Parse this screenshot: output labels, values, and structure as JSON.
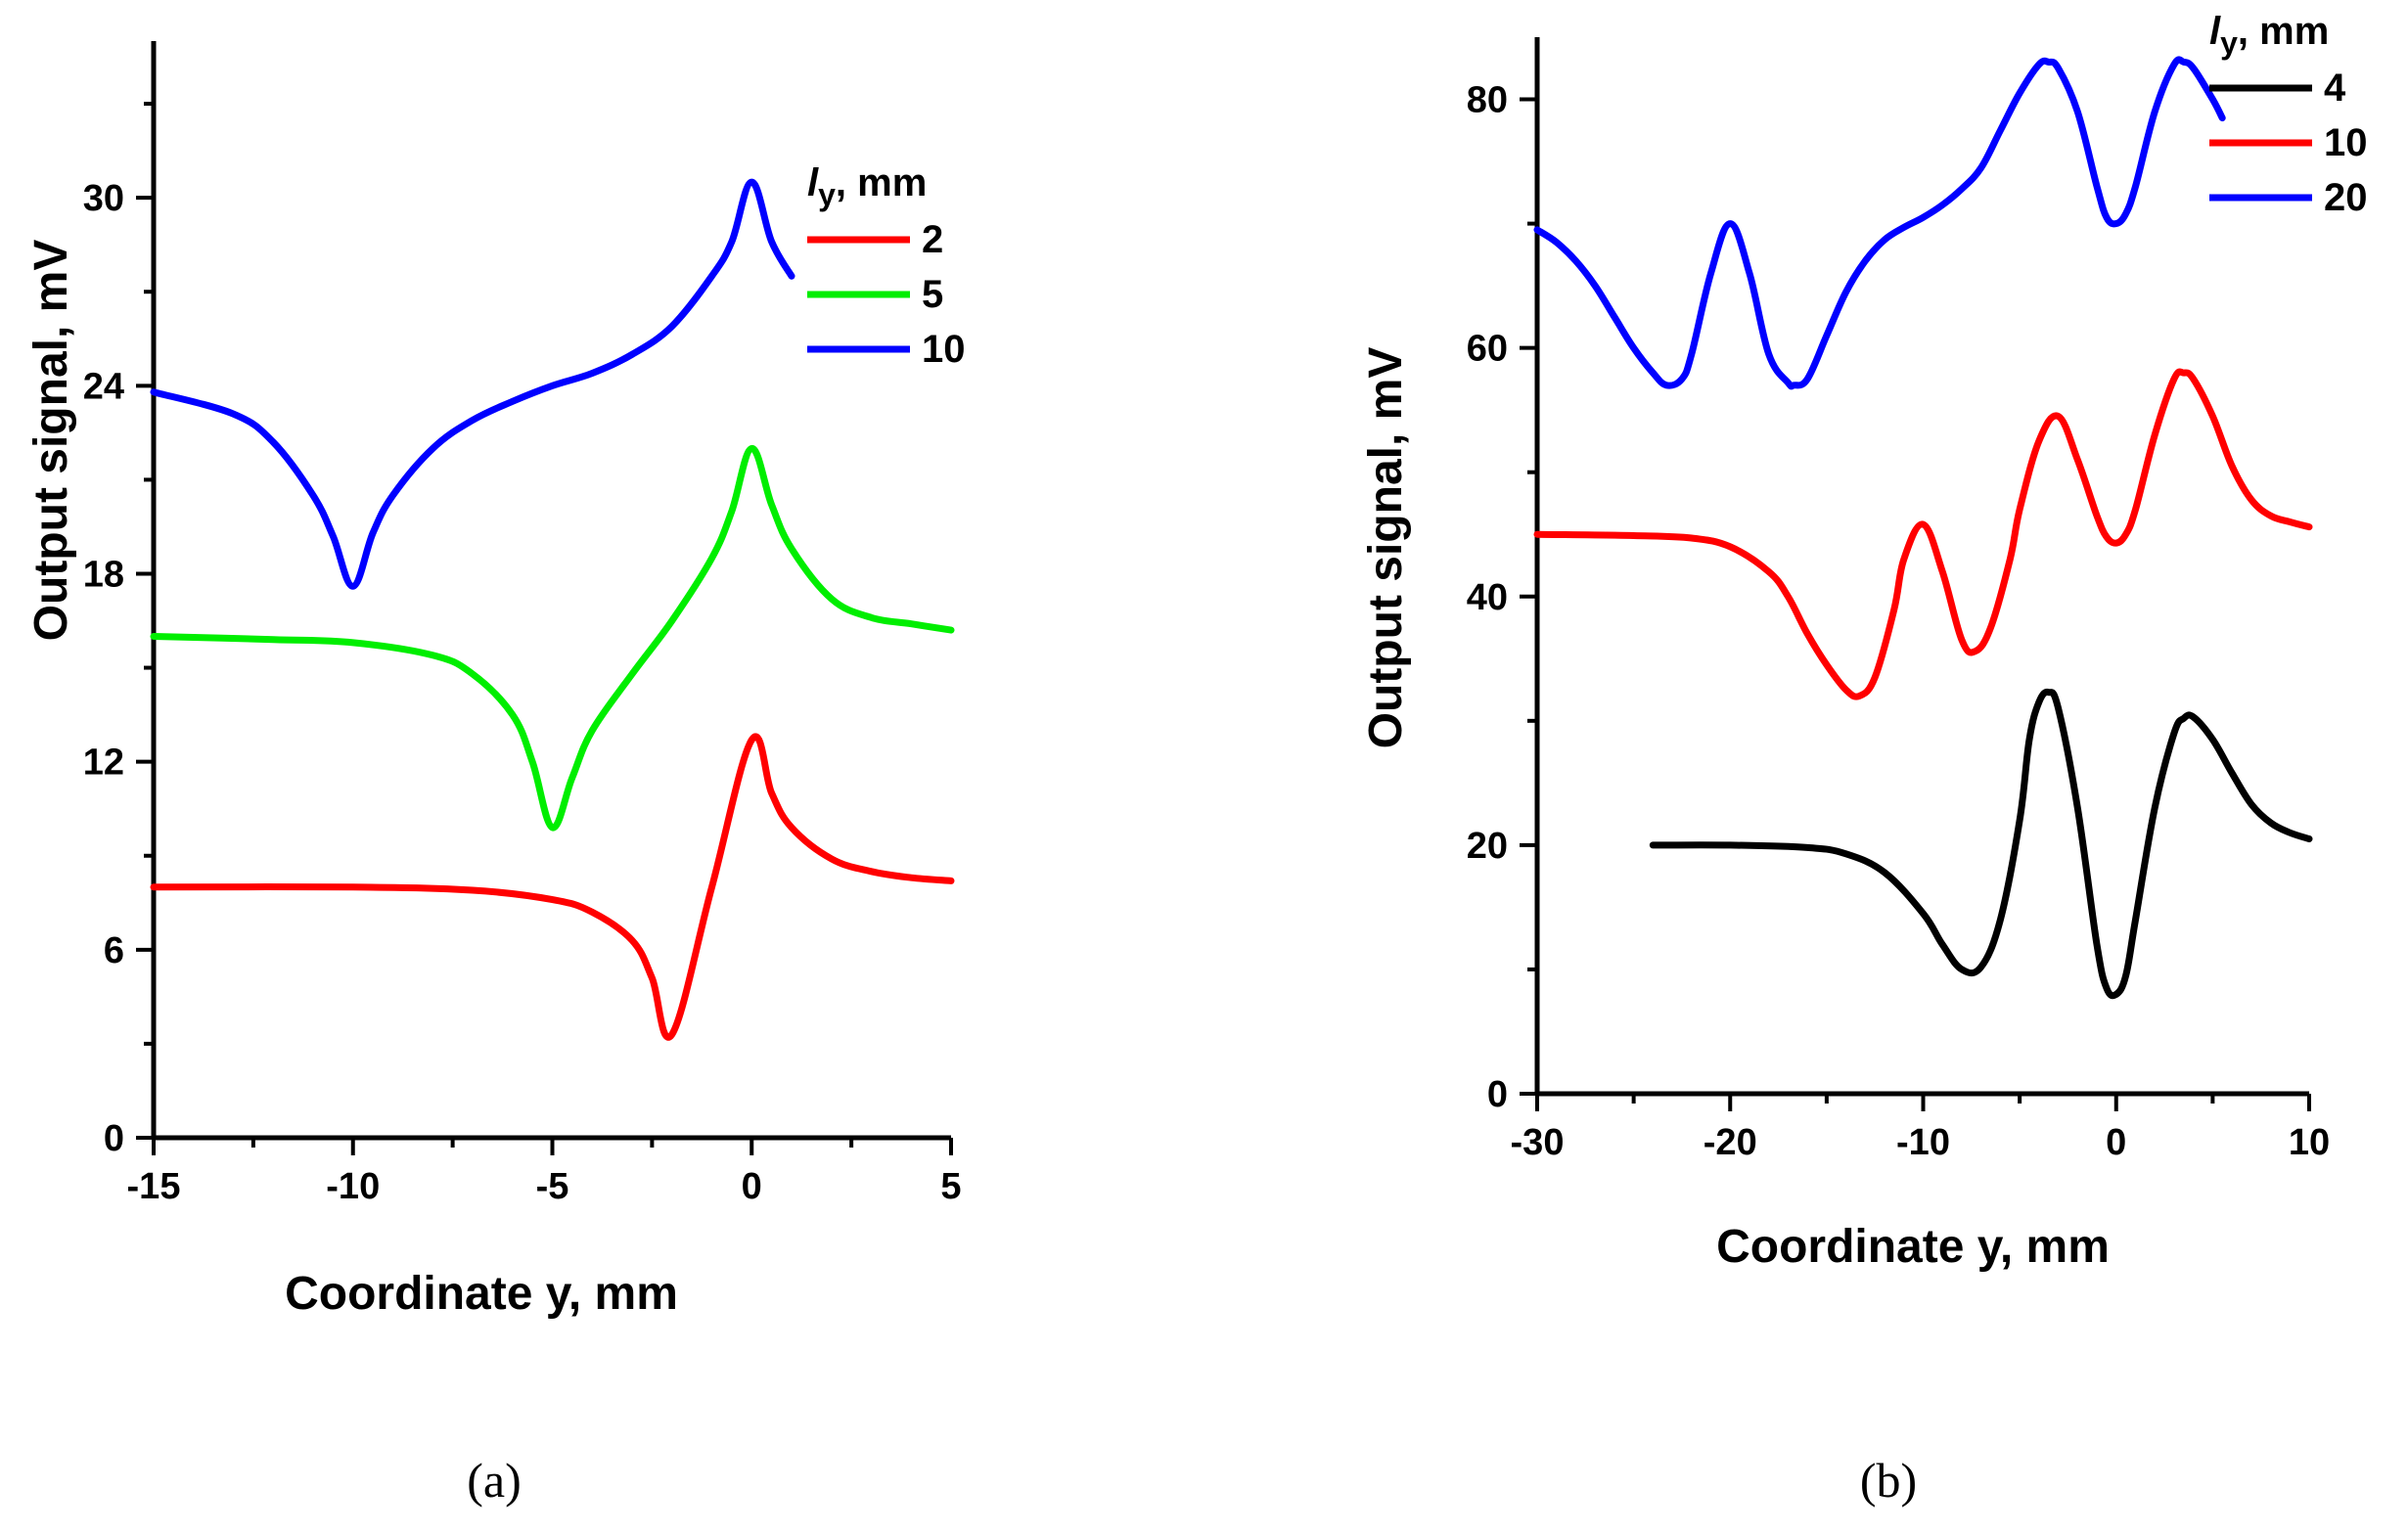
{
  "chart_data": [
    {
      "type": "line",
      "panel_label": "(a)",
      "xlabel": "Coordinate y, mm",
      "ylabel": "Output signal, mV",
      "xlim": [
        -15,
        5
      ],
      "ylim": [
        0,
        35
      ],
      "x_ticks": [
        -15,
        -10,
        -5,
        0,
        5
      ],
      "y_ticks": [
        0,
        6,
        12,
        18,
        24,
        30
      ],
      "grid": false,
      "legend": {
        "title": "l",
        "title_subscript": "y",
        "title_unit": ",  mm",
        "placement": "top-right",
        "entries": [
          "2",
          "5",
          "10"
        ]
      },
      "series": [
        {
          "name": "2",
          "color": "#ff0000",
          "x": [
            -15,
            -10,
            -7,
            -5,
            -4,
            -3,
            -2.5,
            -2,
            -1,
            0,
            0.5,
            1,
            2,
            3,
            4,
            5
          ],
          "y": [
            8.0,
            8.0,
            7.9,
            7.6,
            7.2,
            6.3,
            5.1,
            3.3,
            8.0,
            12.7,
            11.0,
            9.9,
            8.9,
            8.5,
            8.3,
            8.2
          ]
        },
        {
          "name": "5",
          "color": "#00ee00",
          "x": [
            -15,
            -12,
            -10,
            -8,
            -7,
            -6,
            -5.5,
            -5,
            -4.5,
            -4,
            -3,
            -2,
            -1,
            -0.5,
            0,
            0.5,
            1,
            2,
            3,
            4,
            5
          ],
          "y": [
            16.0,
            15.9,
            15.8,
            15.4,
            14.8,
            13.5,
            12.0,
            9.9,
            11.5,
            13.0,
            14.8,
            16.5,
            18.5,
            20.0,
            22.0,
            20.2,
            18.8,
            17.2,
            16.6,
            16.4,
            16.2
          ]
        },
        {
          "name": "10",
          "color": "#0000ff",
          "x": [
            -15,
            -13,
            -12,
            -11,
            -10.5,
            -10,
            -9.5,
            -9,
            -8,
            -7,
            -6,
            -5,
            -4,
            -3,
            -2,
            -1,
            -0.5,
            0,
            0.5,
            1
          ],
          "y": [
            23.8,
            23.1,
            22.2,
            20.5,
            19.2,
            17.6,
            19.3,
            20.5,
            22.0,
            22.9,
            23.5,
            24.0,
            24.4,
            25.0,
            25.9,
            27.5,
            28.6,
            30.5,
            28.6,
            27.5
          ]
        }
      ]
    },
    {
      "type": "line",
      "panel_label": "(b)",
      "xlabel": "Coordinate y, mm",
      "ylabel": "Output signal, mV",
      "xlim": [
        -30,
        10
      ],
      "ylim": [
        0,
        85
      ],
      "x_ticks": [
        -30,
        -20,
        -10,
        0,
        10
      ],
      "y_ticks": [
        0,
        20,
        40,
        60,
        80
      ],
      "grid": false,
      "legend": {
        "title": "l",
        "title_subscript": "y",
        "title_unit": ",  mm",
        "placement": "top-right",
        "entries": [
          "4",
          "10",
          "20"
        ]
      },
      "series": [
        {
          "name": "4",
          "color": "#000000",
          "x": [
            -24,
            -20,
            -16,
            -14,
            -12,
            -10,
            -9,
            -8,
            -7,
            -6,
            -5,
            -4.5,
            -4,
            -3.5,
            -3,
            -2,
            -1,
            -0.5,
            0,
            0.5,
            1,
            2,
            3,
            3.5,
            4,
            5,
            6,
            7,
            8,
            9,
            10
          ],
          "y": [
            20.0,
            20.0,
            19.8,
            19.3,
            17.8,
            14.5,
            12.0,
            10.0,
            10.2,
            14.0,
            22.0,
            28.5,
            31.5,
            32.3,
            31.0,
            23.0,
            12.0,
            8.5,
            8.0,
            9.5,
            14.0,
            23.0,
            29.0,
            30.2,
            30.3,
            28.5,
            25.8,
            23.3,
            21.8,
            21.0,
            20.5
          ]
        },
        {
          "name": "10",
          "color": "#ff0000",
          "x": [
            -30,
            -25,
            -22,
            -20,
            -18,
            -17,
            -16,
            -15,
            -14,
            -13.3,
            -12.5,
            -11.5,
            -11,
            -10,
            -9,
            -8,
            -7.3,
            -6.5,
            -5.5,
            -5,
            -4,
            -3,
            -2,
            -1,
            -0.5,
            0,
            0.5,
            1,
            2,
            3,
            3.5,
            4,
            5,
            6,
            7,
            8,
            9,
            10
          ],
          "y": [
            45.0,
            44.9,
            44.7,
            44.0,
            42.0,
            40.0,
            37.0,
            34.5,
            32.5,
            32.0,
            33.5,
            39.0,
            43.0,
            45.8,
            42.0,
            36.5,
            35.6,
            37.5,
            43.0,
            47.0,
            52.5,
            54.5,
            51.0,
            46.5,
            44.8,
            44.3,
            45.0,
            47.0,
            53.0,
            57.5,
            58.0,
            57.5,
            54.5,
            50.5,
            47.8,
            46.5,
            46.0,
            45.6
          ]
        },
        {
          "name": "20",
          "color": "#0000ff",
          "x": [
            -30,
            -29,
            -28,
            -27,
            -26,
            -25,
            -24,
            -23.3,
            -22.5,
            -22,
            -21,
            -20,
            -19,
            -18,
            -17,
            -16.7,
            -16,
            -15,
            -14,
            -13,
            -12,
            -11,
            -10,
            -9,
            -8,
            -7,
            -6,
            -5,
            -4,
            -3.5,
            -3,
            -2,
            -1,
            -0.5,
            0,
            0.5,
            1,
            2,
            3,
            3.5,
            4,
            5,
            5.5
          ],
          "y": [
            69.5,
            68.5,
            67.0,
            65.0,
            62.5,
            60.0,
            58.0,
            57.0,
            57.5,
            59.5,
            66.0,
            70.0,
            66.0,
            59.5,
            57.2,
            57.0,
            57.5,
            61.0,
            64.5,
            67.0,
            68.7,
            69.7,
            70.5,
            71.5,
            72.8,
            74.5,
            77.5,
            80.5,
            82.8,
            83.0,
            82.5,
            79.0,
            73.0,
            70.5,
            70.0,
            70.8,
            73.0,
            79.0,
            82.8,
            83.0,
            82.5,
            80.0,
            78.5
          ]
        }
      ]
    }
  ]
}
